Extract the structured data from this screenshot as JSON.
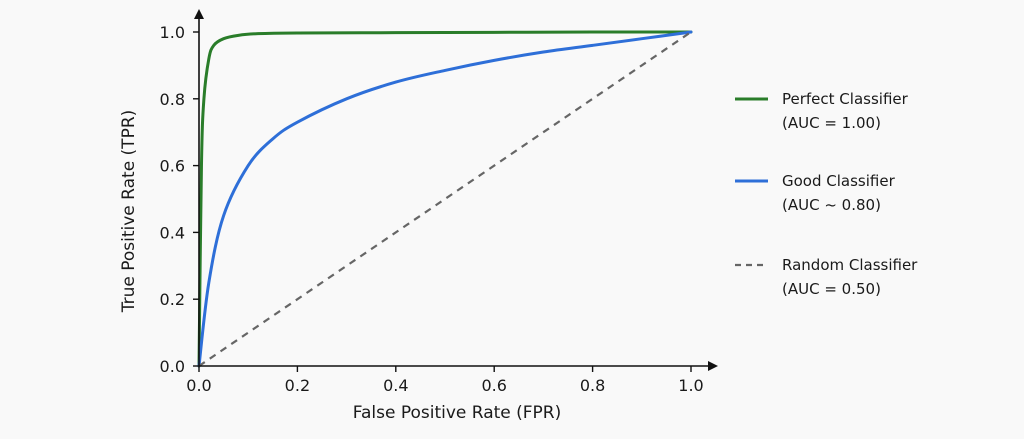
{
  "chart_data": {
    "type": "line",
    "title": "",
    "xlabel": "False Positive Rate (FPR)",
    "ylabel": "True Positive Rate (TPR)",
    "xlim": [
      0,
      1
    ],
    "ylim": [
      0,
      1
    ],
    "x_ticks": [
      "0.0",
      "0.2",
      "0.4",
      "0.6",
      "0.8",
      "1.0"
    ],
    "y_ticks": [
      "0.0",
      "0.2",
      "0.4",
      "0.6",
      "0.8",
      "1.0"
    ],
    "grid": false,
    "legend_position": "right",
    "series": [
      {
        "name": "Perfect Classifier",
        "note": "(AUC = 1.00)",
        "color": "#2a7d2a",
        "dash": "solid",
        "x": [
          0,
          0.005,
          0.01,
          0.02,
          0.03,
          0.05,
          0.08,
          0.12,
          0.2,
          0.4,
          0.6,
          0.8,
          1.0
        ],
        "y": [
          0,
          0.6,
          0.8,
          0.92,
          0.96,
          0.98,
          0.99,
          0.995,
          0.997,
          0.998,
          0.999,
          1.0,
          1.0
        ]
      },
      {
        "name": "Good Classifier",
        "note": "(AUC ~ 0.80)",
        "color": "#2e6fd8",
        "dash": "solid",
        "x": [
          0,
          0.02,
          0.05,
          0.1,
          0.15,
          0.2,
          0.3,
          0.4,
          0.5,
          0.6,
          0.7,
          0.8,
          0.9,
          1.0
        ],
        "y": [
          0,
          0.25,
          0.45,
          0.6,
          0.68,
          0.73,
          0.8,
          0.85,
          0.885,
          0.915,
          0.94,
          0.96,
          0.98,
          1.0
        ]
      },
      {
        "name": "Random Classifier",
        "note": "(AUC = 0.50)",
        "color": "#666666",
        "dash": "dashed",
        "x": [
          0,
          1
        ],
        "y": [
          0,
          1
        ]
      }
    ]
  }
}
